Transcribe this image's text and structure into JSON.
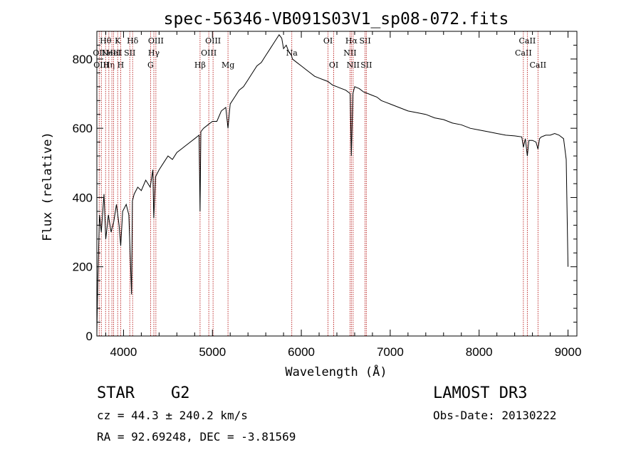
{
  "chart_data": {
    "type": "line",
    "title": "spec-56346-VB091S03V1_sp08-072.fits",
    "xlabel": "Wavelength (Å)",
    "ylabel": "Flux (relative)",
    "xlim": [
      3700,
      9100
    ],
    "ylim": [
      0,
      880
    ],
    "xticks": [
      4000,
      5000,
      6000,
      7000,
      8000,
      9000
    ],
    "xtick_labels": [
      "4000",
      "5000",
      "6000",
      "7000",
      "8000",
      "9000"
    ],
    "yticks": [
      0,
      200,
      400,
      600,
      800
    ],
    "ytick_labels": [
      "0",
      "200",
      "400",
      "600",
      "800"
    ],
    "series": [
      {
        "name": "spectrum",
        "x": [
          3700,
          3710,
          3730,
          3750,
          3780,
          3800,
          3830,
          3860,
          3890,
          3920,
          3950,
          3968,
          3990,
          4030,
          4060,
          4090,
          4100,
          4120,
          4160,
          4200,
          4250,
          4300,
          4330,
          4340,
          4360,
          4400,
          4450,
          4500,
          4550,
          4600,
          4650,
          4700,
          4750,
          4800,
          4850,
          4861,
          4870,
          4900,
          4950,
          5000,
          5050,
          5100,
          5150,
          5175,
          5200,
          5250,
          5300,
          5350,
          5400,
          5450,
          5500,
          5550,
          5600,
          5650,
          5700,
          5750,
          5780,
          5800,
          5830,
          5860,
          5890,
          5900,
          5950,
          6000,
          6050,
          6100,
          6150,
          6200,
          6250,
          6300,
          6350,
          6400,
          6450,
          6500,
          6550,
          6563,
          6580,
          6600,
          6650,
          6700,
          6750,
          6800,
          6850,
          6900,
          6950,
          7000,
          7100,
          7200,
          7300,
          7400,
          7500,
          7600,
          7700,
          7800,
          7900,
          8000,
          8100,
          8200,
          8300,
          8400,
          8480,
          8498,
          8520,
          8542,
          8560,
          8600,
          8640,
          8662,
          8680,
          8700,
          8750,
          8800,
          8850,
          8900,
          8950,
          8980,
          9000
        ],
        "y": [
          10,
          150,
          350,
          300,
          410,
          280,
          350,
          300,
          330,
          380,
          320,
          260,
          360,
          380,
          350,
          120,
          390,
          410,
          430,
          420,
          450,
          430,
          480,
          340,
          460,
          480,
          500,
          520,
          510,
          530,
          540,
          550,
          560,
          570,
          580,
          360,
          590,
          600,
          610,
          620,
          620,
          650,
          660,
          600,
          670,
          690,
          710,
          720,
          740,
          760,
          780,
          790,
          810,
          830,
          850,
          870,
          860,
          830,
          840,
          820,
          810,
          800,
          790,
          780,
          770,
          760,
          750,
          745,
          740,
          735,
          725,
          720,
          715,
          710,
          700,
          520,
          700,
          720,
          715,
          705,
          700,
          695,
          690,
          680,
          675,
          670,
          660,
          650,
          645,
          640,
          630,
          625,
          615,
          610,
          600,
          595,
          590,
          585,
          580,
          578,
          575,
          545,
          570,
          520,
          565,
          565,
          560,
          540,
          570,
          575,
          580,
          580,
          585,
          580,
          570,
          510,
          200
        ]
      }
    ],
    "lines": [
      {
        "x": 3726,
        "label": "OII",
        "row": 2
      },
      {
        "x": 3750,
        "label": "OIII",
        "row": 3
      },
      {
        "x": 3798,
        "label": "Hθ",
        "row": 1
      },
      {
        "x": 3835,
        "label": "Hη",
        "row": 3
      },
      {
        "x": 3869,
        "label": "NeIII",
        "row": 2
      },
      {
        "x": 3889,
        "label": "HeI",
        "row": 2
      },
      {
        "x": 3934,
        "label": "K",
        "row": 1
      },
      {
        "x": 3968,
        "label": "H",
        "row": 3
      },
      {
        "x": 4070,
        "label": "SII",
        "row": 2
      },
      {
        "x": 4102,
        "label": "Hδ",
        "row": 1
      },
      {
        "x": 4304,
        "label": "G",
        "row": 3
      },
      {
        "x": 4341,
        "label": "Hγ",
        "row": 2
      },
      {
        "x": 4364,
        "label": "OIII",
        "row": 1
      },
      {
        "x": 4861,
        "label": "Hβ",
        "row": 3
      },
      {
        "x": 4959,
        "label": "OIII",
        "row": 2
      },
      {
        "x": 5007,
        "label": "OIII",
        "row": 1
      },
      {
        "x": 5175,
        "label": "Mg",
        "row": 3
      },
      {
        "x": 5893,
        "label": "Na",
        "row": 2
      },
      {
        "x": 6300,
        "label": "OI",
        "row": 1
      },
      {
        "x": 6364,
        "label": "OI",
        "row": 3
      },
      {
        "x": 6548,
        "label": "NII",
        "row": 2
      },
      {
        "x": 6563,
        "label": "Hα",
        "row": 1
      },
      {
        "x": 6583,
        "label": "NII",
        "row": 3
      },
      {
        "x": 6717,
        "label": "SII",
        "row": 1
      },
      {
        "x": 6731,
        "label": "SII",
        "row": 3
      },
      {
        "x": 8498,
        "label": "CaII",
        "row": 2
      },
      {
        "x": 8542,
        "label": "CaII",
        "row": 1
      },
      {
        "x": 8662,
        "label": "CaII",
        "row": 3
      }
    ],
    "legend": "none",
    "grid": false
  },
  "info": {
    "object_class": "STAR",
    "subclass": "G2",
    "survey": "LAMOST DR3",
    "redshift": "cz = 44.3 ± 240.2 km/s",
    "obs_date": "Obs-Date: 20130222",
    "coordinates": "RA =  92.69248, DEC =  -3.81569"
  },
  "colors": {
    "spectrum": "#000000",
    "line_markers": "#b00000",
    "axes": "#000000"
  }
}
